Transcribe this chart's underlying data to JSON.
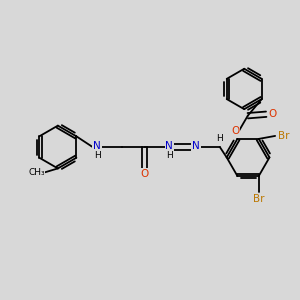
{
  "background_color": "#d8d8d8",
  "figsize": [
    3.0,
    3.0
  ],
  "dpi": 100,
  "atom_colors": {
    "C": "#000000",
    "N": "#0000cc",
    "O": "#dd3300",
    "Br": "#bb7700",
    "H": "#000000"
  },
  "bond_color": "#000000",
  "bond_width": 1.3,
  "font_size_atom": 7.5,
  "font_size_h": 6.5,
  "font_size_small": 6.5
}
